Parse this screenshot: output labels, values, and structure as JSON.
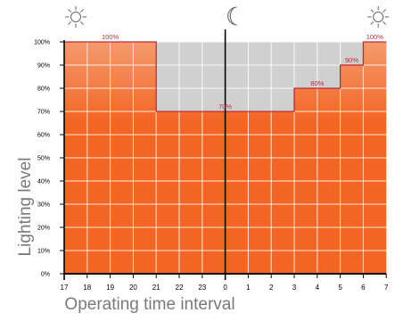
{
  "chart_data": {
    "type": "area",
    "title": "",
    "xlabel": "Operating time interval",
    "ylabel": "Lighting level",
    "x_ticks": [
      "17",
      "18",
      "19",
      "20",
      "21",
      "22",
      "23",
      "0",
      "1",
      "2",
      "3",
      "4",
      "5",
      "6",
      "7"
    ],
    "y_ticks": [
      "0%",
      "10%",
      "20%",
      "30%",
      "40%",
      "50%",
      "60%",
      "70%",
      "80%",
      "90%",
      "100%"
    ],
    "ylim": [
      0,
      100
    ],
    "grid": true,
    "icons": [
      "sun-icon",
      "moon-icon",
      "sun-icon"
    ],
    "colors": {
      "fill_top": "#f59a6e",
      "fill_bottom": "#f26522",
      "empty": "#d0d0d0",
      "line": "#c0283a",
      "label": "#c0283a",
      "axis": "#000000"
    },
    "series": [
      {
        "segments": [
          {
            "start": "17",
            "end": "21",
            "level": 100,
            "label": "100%"
          },
          {
            "start": "21",
            "end": "3",
            "level": 70,
            "label": "70%"
          },
          {
            "start": "3",
            "end": "5",
            "level": 80,
            "label": "80%"
          },
          {
            "start": "5",
            "end": "6",
            "level": 90,
            "label": "90%"
          },
          {
            "start": "6",
            "end": "7",
            "level": 100,
            "label": "100%"
          }
        ]
      }
    ]
  }
}
